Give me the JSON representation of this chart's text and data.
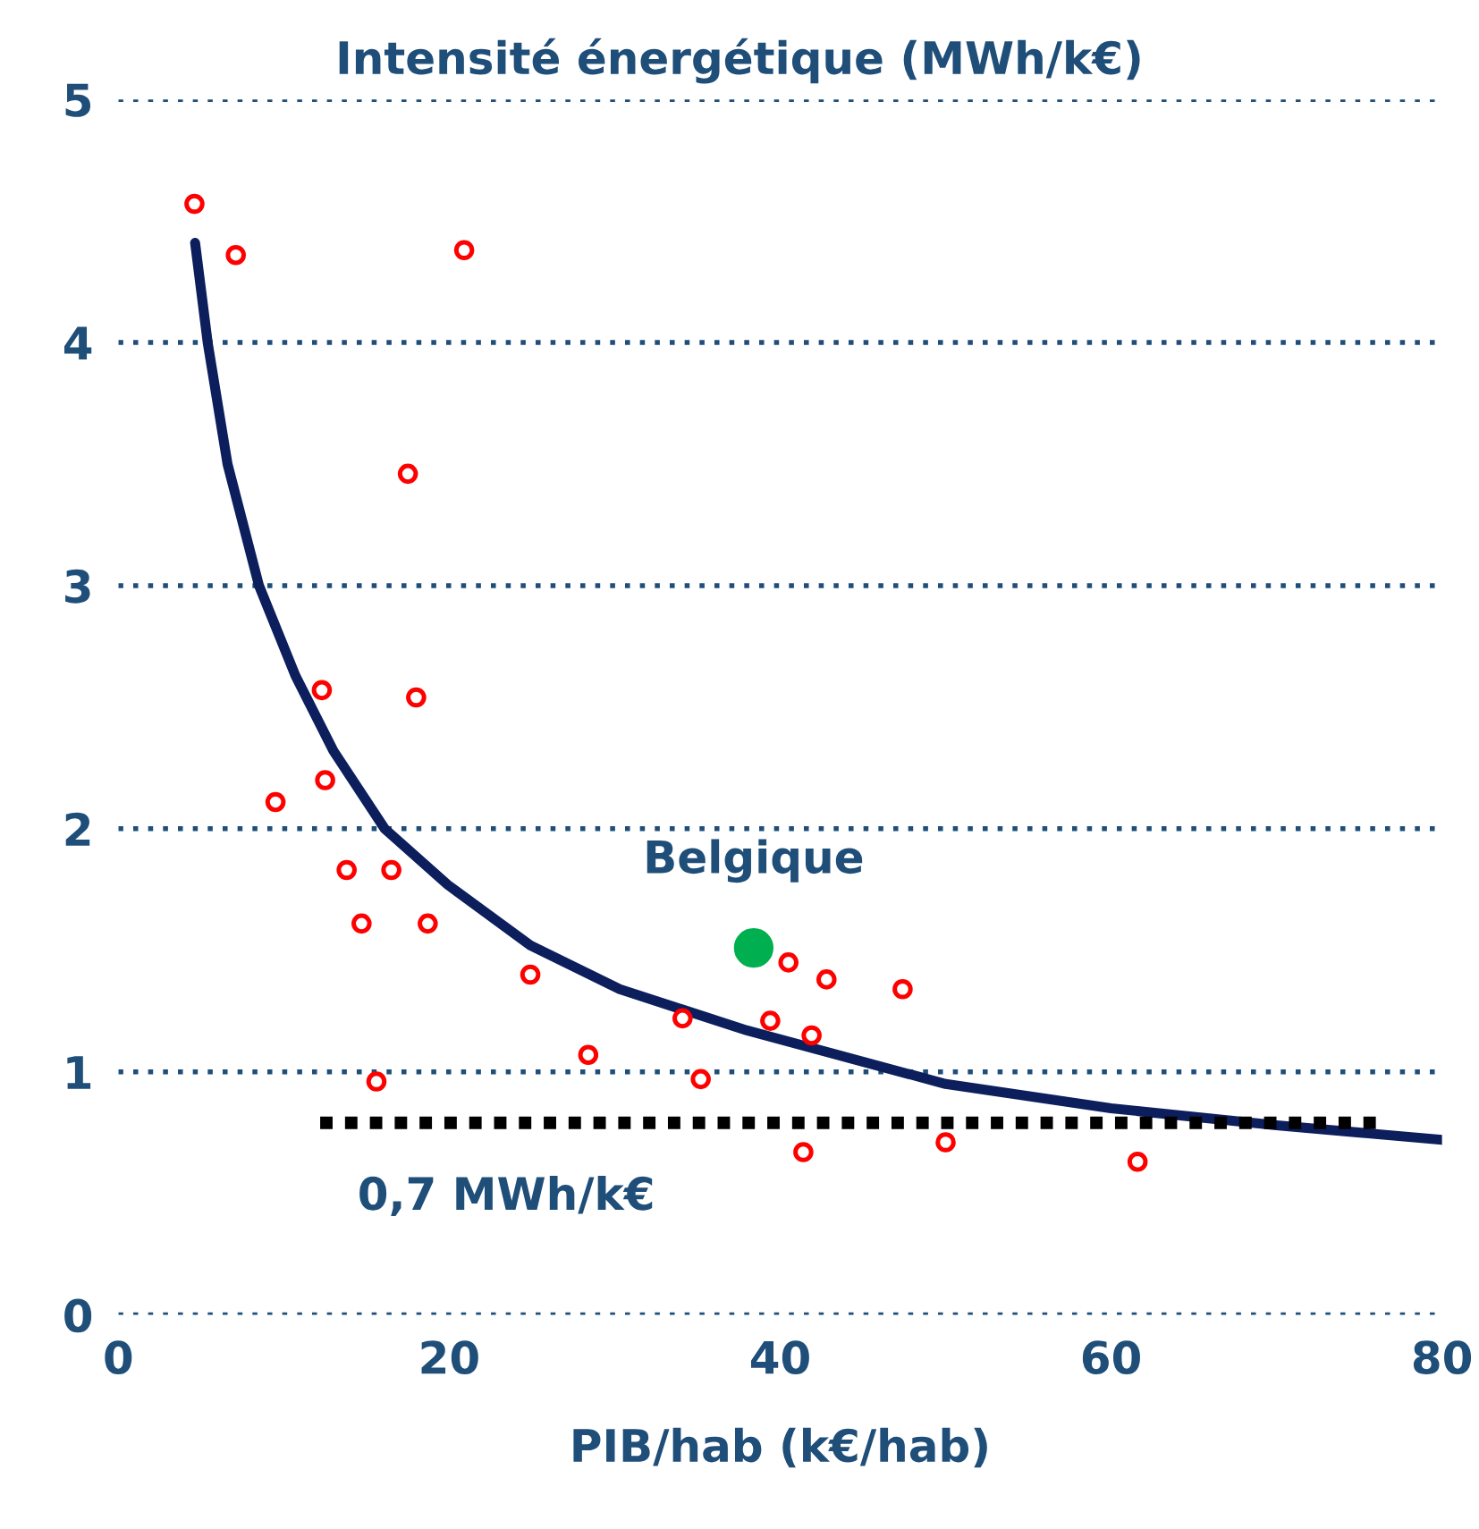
{
  "chart_data": {
    "type": "scatter",
    "ylabel": "Intensité énergétique (MWh/k€)",
    "xlabel": "PIB/hab (k€/hab)",
    "xlim": [
      0,
      80
    ],
    "xticks": [
      0,
      20,
      40,
      60,
      80
    ],
    "ylim": [
      0,
      5
    ],
    "yticks": [
      0,
      1,
      2,
      3,
      4,
      5
    ],
    "grid": "y",
    "legend": false,
    "series": [
      {
        "color": "#ff0000",
        "marker": "circle",
        "x": [
          4.6,
          7.1,
          20.9,
          17.5,
          12.3,
          18.0,
          12.5,
          9.5,
          13.8,
          16.5,
          14.7,
          18.7,
          24.9,
          28.4,
          15.6,
          34.1,
          35.2,
          40.5,
          42.8,
          47.4,
          39.4,
          41.9,
          41.4,
          50.0,
          61.6
        ],
        "values": [
          4.57,
          4.36,
          4.38,
          3.46,
          2.57,
          2.54,
          2.2,
          2.11,
          1.83,
          1.83,
          1.61,
          1.61,
          1.4,
          1.07,
          0.96,
          1.22,
          0.97,
          1.45,
          1.38,
          1.34,
          1.21,
          1.15,
          0.67,
          0.71,
          0.63
        ]
      },
      {
        "color": "#00b050",
        "marker": "circle",
        "x": [
          38.4
        ],
        "values": [
          1.51
        ]
      },
      {
        "type": "line",
        "color": "#0c1f5c",
        "line_style": "solid",
        "x": [
          4.64,
          5.4,
          6.6,
          8.5,
          10.7,
          13.0,
          16.1,
          19.9,
          24.9,
          30.3,
          38.0,
          50,
          60,
          70,
          80
        ],
        "values": [
          4.41,
          4.0,
          3.5,
          3.0,
          2.63,
          2.32,
          2.0,
          1.77,
          1.52,
          1.34,
          1.17,
          0.95,
          0.85,
          0.78,
          0.72
        ]
      },
      {
        "type": "line",
        "color": "#000000",
        "line_style": "dotted",
        "x": [
          12.2,
          76.5
        ],
        "values": [
          0.79,
          0.79
        ]
      }
    ],
    "annotations": [
      {
        "text": "Belgique",
        "x": 38.4,
        "y": 1.51
      },
      {
        "text": "0,7 MWh/k€",
        "x": 12.2,
        "y": 0.79
      }
    ]
  }
}
